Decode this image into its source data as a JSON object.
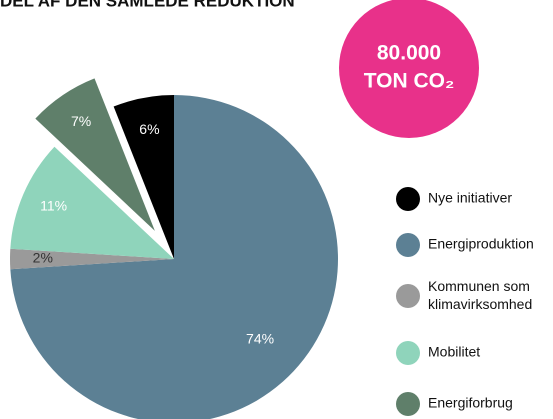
{
  "chart_data": {
    "type": "pie",
    "title": "DEL AF DEN SAMLEDE REDUKTION",
    "badge": [
      "80.000",
      "TON CO₂"
    ],
    "categories": [
      "Nye initiativer",
      "Energiproduktion",
      "Kommunen som klimavirksomhed",
      "Mobilitet",
      "Energiforbrug"
    ],
    "values": [
      6,
      74,
      2,
      11,
      7
    ],
    "value_labels": [
      "6%",
      "74%",
      "2%",
      "11%",
      "7%"
    ],
    "colors": [
      "#000000",
      "#5c8094",
      "#9a9a9a",
      "#8fd4bb",
      "#5f7f6a"
    ],
    "exploded": [
      false,
      false,
      false,
      false,
      true
    ],
    "legend": "right"
  }
}
